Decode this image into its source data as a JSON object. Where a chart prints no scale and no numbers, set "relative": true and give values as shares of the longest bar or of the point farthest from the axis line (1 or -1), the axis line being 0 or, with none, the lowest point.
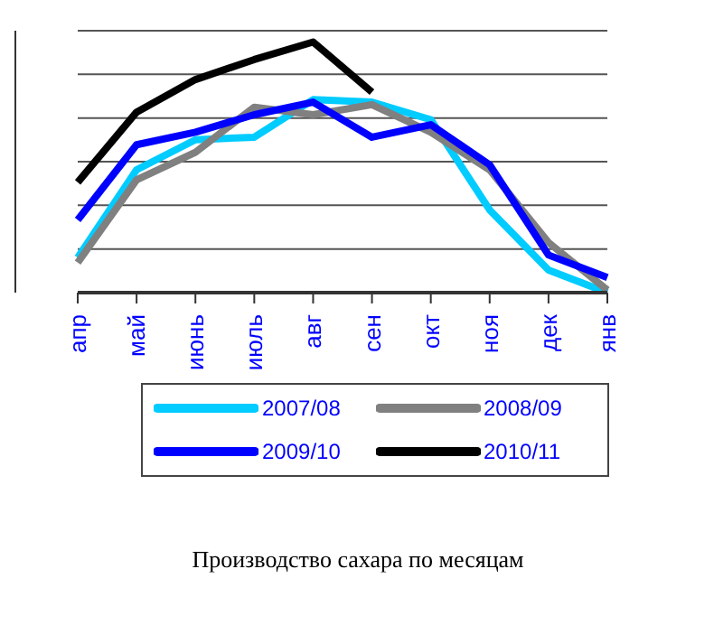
{
  "chart_data": {
    "type": "line",
    "title": "Производство сахара по месяцам",
    "relative": true,
    "grid": "y",
    "legend": "bottom",
    "marker": "none",
    "line_style": "solid",
    "categories": [
      "апр",
      "май",
      "июнь",
      "июль",
      "авг",
      "сен",
      "окт",
      "ноя",
      "дек",
      "янв"
    ],
    "series": [
      {
        "name": "2007/08",
        "color": "#00ccff",
        "values": [
          0.14,
          0.49,
          0.61,
          0.62,
          0.77,
          0.76,
          0.69,
          0.33,
          0.09,
          0
        ]
      },
      {
        "name": "2008/09",
        "color": "#808080",
        "values": [
          0.12,
          0.45,
          0.56,
          0.74,
          0.71,
          0.75,
          0.64,
          0.49,
          0.2,
          0.01
        ]
      },
      {
        "name": "2009/10",
        "color": "#0000ff",
        "values": [
          0.29,
          0.59,
          0.64,
          0.71,
          0.76,
          0.62,
          0.67,
          0.51,
          0.15,
          0.06
        ]
      },
      {
        "name": "2010/11",
        "color": "#000000",
        "values": [
          0.44,
          0.72,
          0.85,
          0.93,
          1,
          0.8,
          null,
          null,
          null,
          null
        ]
      }
    ]
  }
}
